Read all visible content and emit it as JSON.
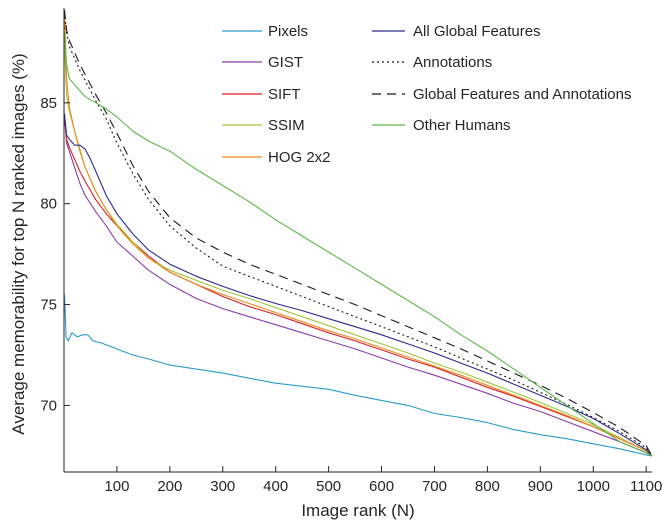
{
  "chart_data": {
    "type": "line",
    "title": "",
    "xlabel": "Image rank (N)",
    "ylabel": "Average memorability for top N ranked images (%)",
    "xlim": [
      0,
      1111
    ],
    "ylim": [
      66.7,
      89.7
    ],
    "xticks": [
      100,
      200,
      300,
      400,
      500,
      600,
      700,
      800,
      900,
      1000,
      1100
    ],
    "yticks": [
      70,
      75,
      80,
      85
    ],
    "grid": false,
    "legend_position": "top-right",
    "series": [
      {
        "name": "Pixels",
        "color": "#2A9BC9",
        "dash": "solid",
        "points": [
          [
            1,
            75.5
          ],
          [
            4,
            73.4
          ],
          [
            8,
            73.2
          ],
          [
            15,
            73.6
          ],
          [
            25,
            73.4
          ],
          [
            35,
            73.5
          ],
          [
            45,
            73.5
          ],
          [
            55,
            73.2
          ],
          [
            70,
            73.1
          ],
          [
            90,
            72.9
          ],
          [
            110,
            72.7
          ],
          [
            130,
            72.5
          ],
          [
            160,
            72.3
          ],
          [
            200,
            72.0
          ],
          [
            250,
            71.8
          ],
          [
            300,
            71.6
          ],
          [
            350,
            71.35
          ],
          [
            400,
            71.1
          ],
          [
            450,
            70.95
          ],
          [
            500,
            70.8
          ],
          [
            550,
            70.5
          ],
          [
            600,
            70.25
          ],
          [
            650,
            70.0
          ],
          [
            700,
            69.6
          ],
          [
            750,
            69.4
          ],
          [
            800,
            69.15
          ],
          [
            850,
            68.8
          ],
          [
            900,
            68.55
          ],
          [
            950,
            68.35
          ],
          [
            1000,
            68.1
          ],
          [
            1050,
            67.85
          ],
          [
            1100,
            67.55
          ],
          [
            1111,
            67.5
          ]
        ]
      },
      {
        "name": "GIST",
        "color": "#8A3FA5",
        "dash": "solid",
        "points": [
          [
            1,
            84.5
          ],
          [
            5,
            83.0
          ],
          [
            10,
            82.6
          ],
          [
            20,
            81.8
          ],
          [
            30,
            81.0
          ],
          [
            40,
            80.4
          ],
          [
            60,
            79.6
          ],
          [
            80,
            78.9
          ],
          [
            100,
            78.1
          ],
          [
            130,
            77.4
          ],
          [
            160,
            76.7
          ],
          [
            200,
            76.0
          ],
          [
            250,
            75.3
          ],
          [
            300,
            74.8
          ],
          [
            350,
            74.4
          ],
          [
            400,
            74.0
          ],
          [
            450,
            73.6
          ],
          [
            500,
            73.2
          ],
          [
            550,
            72.8
          ],
          [
            600,
            72.35
          ],
          [
            650,
            71.9
          ],
          [
            700,
            71.5
          ],
          [
            750,
            71.05
          ],
          [
            800,
            70.6
          ],
          [
            850,
            70.1
          ],
          [
            900,
            69.7
          ],
          [
            950,
            69.2
          ],
          [
            1000,
            68.7
          ],
          [
            1050,
            68.2
          ],
          [
            1100,
            67.65
          ],
          [
            1111,
            67.5
          ]
        ]
      },
      {
        "name": "SIFT",
        "color": "#D82027",
        "dash": "solid",
        "points": [
          [
            1,
            84.2
          ],
          [
            5,
            83.2
          ],
          [
            10,
            82.8
          ],
          [
            20,
            82.2
          ],
          [
            30,
            81.6
          ],
          [
            40,
            81.1
          ],
          [
            60,
            80.2
          ],
          [
            80,
            79.5
          ],
          [
            100,
            78.9
          ],
          [
            130,
            78.1
          ],
          [
            160,
            77.4
          ],
          [
            200,
            76.6
          ],
          [
            250,
            76.0
          ],
          [
            300,
            75.4
          ],
          [
            350,
            74.9
          ],
          [
            400,
            74.5
          ],
          [
            450,
            74.05
          ],
          [
            500,
            73.6
          ],
          [
            550,
            73.2
          ],
          [
            600,
            72.75
          ],
          [
            650,
            72.3
          ],
          [
            700,
            71.9
          ],
          [
            750,
            71.4
          ],
          [
            800,
            70.9
          ],
          [
            850,
            70.45
          ],
          [
            900,
            69.95
          ],
          [
            950,
            69.45
          ],
          [
            1000,
            68.95
          ],
          [
            1050,
            68.35
          ],
          [
            1100,
            67.75
          ],
          [
            1111,
            67.5
          ]
        ]
      },
      {
        "name": "SSIM",
        "color": "#A4C639",
        "dash": "solid",
        "points": [
          [
            1,
            87.9
          ],
          [
            5,
            85.4
          ],
          [
            10,
            84.6
          ],
          [
            20,
            83.6
          ],
          [
            30,
            82.7
          ],
          [
            40,
            81.8
          ],
          [
            60,
            80.6
          ],
          [
            80,
            79.7
          ],
          [
            100,
            79.0
          ],
          [
            130,
            78.1
          ],
          [
            160,
            77.3
          ],
          [
            200,
            76.7
          ],
          [
            250,
            76.2
          ],
          [
            300,
            75.7
          ],
          [
            350,
            75.3
          ],
          [
            400,
            74.85
          ],
          [
            450,
            74.4
          ],
          [
            500,
            73.95
          ],
          [
            550,
            73.5
          ],
          [
            600,
            73.05
          ],
          [
            650,
            72.6
          ],
          [
            700,
            72.1
          ],
          [
            750,
            71.65
          ],
          [
            800,
            71.15
          ],
          [
            850,
            70.65
          ],
          [
            900,
            70.15
          ],
          [
            950,
            69.6
          ],
          [
            1000,
            69.05
          ],
          [
            1050,
            68.4
          ],
          [
            1100,
            67.75
          ],
          [
            1111,
            67.5
          ]
        ]
      },
      {
        "name": "HOG 2x2",
        "color": "#F08A1C",
        "dash": "solid",
        "points": [
          [
            1,
            89.6
          ],
          [
            5,
            86.2
          ],
          [
            10,
            84.8
          ],
          [
            20,
            83.6
          ],
          [
            30,
            82.6
          ],
          [
            40,
            81.8
          ],
          [
            60,
            80.6
          ],
          [
            80,
            79.7
          ],
          [
            100,
            78.9
          ],
          [
            130,
            78.0
          ],
          [
            160,
            77.3
          ],
          [
            200,
            76.6
          ],
          [
            250,
            76.0
          ],
          [
            300,
            75.5
          ],
          [
            350,
            75.05
          ],
          [
            400,
            74.6
          ],
          [
            450,
            74.15
          ],
          [
            500,
            73.7
          ],
          [
            550,
            73.3
          ],
          [
            600,
            72.85
          ],
          [
            650,
            72.4
          ],
          [
            700,
            71.95
          ],
          [
            750,
            71.5
          ],
          [
            800,
            71.0
          ],
          [
            850,
            70.5
          ],
          [
            900,
            70.0
          ],
          [
            950,
            69.5
          ],
          [
            1000,
            68.95
          ],
          [
            1050,
            68.35
          ],
          [
            1100,
            67.75
          ],
          [
            1111,
            67.5
          ]
        ]
      },
      {
        "name": "All Global Features",
        "color": "#2B2C8F",
        "dash": "solid",
        "points": [
          [
            1,
            84.4
          ],
          [
            5,
            83.4
          ],
          [
            10,
            83.2
          ],
          [
            20,
            82.9
          ],
          [
            30,
            82.9
          ],
          [
            40,
            82.7
          ],
          [
            50,
            82.2
          ],
          [
            60,
            81.6
          ],
          [
            80,
            80.4
          ],
          [
            100,
            79.5
          ],
          [
            130,
            78.5
          ],
          [
            160,
            77.7
          ],
          [
            200,
            77.0
          ],
          [
            250,
            76.4
          ],
          [
            300,
            75.9
          ],
          [
            350,
            75.45
          ],
          [
            400,
            75.05
          ],
          [
            450,
            74.7
          ],
          [
            500,
            74.3
          ],
          [
            550,
            73.9
          ],
          [
            600,
            73.5
          ],
          [
            650,
            73.05
          ],
          [
            700,
            72.6
          ],
          [
            750,
            72.1
          ],
          [
            800,
            71.6
          ],
          [
            850,
            71.05
          ],
          [
            900,
            70.5
          ],
          [
            950,
            69.95
          ],
          [
            1000,
            69.35
          ],
          [
            1050,
            68.6
          ],
          [
            1100,
            67.8
          ],
          [
            1111,
            67.5
          ]
        ]
      },
      {
        "name": "Annotations",
        "color": "#1a1a1a",
        "dash": "dotted",
        "points": [
          [
            1,
            89.5
          ],
          [
            5,
            88.5
          ],
          [
            10,
            87.8
          ],
          [
            20,
            87.2
          ],
          [
            30,
            86.6
          ],
          [
            40,
            86.1
          ],
          [
            60,
            85.1
          ],
          [
            80,
            84.2
          ],
          [
            100,
            83.0
          ],
          [
            130,
            81.5
          ],
          [
            160,
            80.2
          ],
          [
            200,
            78.9
          ],
          [
            250,
            77.8
          ],
          [
            300,
            76.9
          ],
          [
            350,
            76.4
          ],
          [
            400,
            75.9
          ],
          [
            450,
            75.4
          ],
          [
            500,
            74.9
          ],
          [
            550,
            74.4
          ],
          [
            600,
            73.9
          ],
          [
            650,
            73.4
          ],
          [
            700,
            72.9
          ],
          [
            750,
            72.35
          ],
          [
            800,
            71.8
          ],
          [
            850,
            71.25
          ],
          [
            900,
            70.65
          ],
          [
            950,
            70.05
          ],
          [
            1000,
            69.4
          ],
          [
            1050,
            68.7
          ],
          [
            1100,
            67.9
          ],
          [
            1111,
            67.5
          ]
        ]
      },
      {
        "name": "Global Features and Annotations",
        "color": "#1a1a1a",
        "dash": "dashed",
        "points": [
          [
            1,
            89.6
          ],
          [
            5,
            88.6
          ],
          [
            10,
            88.1
          ],
          [
            20,
            87.5
          ],
          [
            30,
            86.9
          ],
          [
            40,
            86.4
          ],
          [
            60,
            85.4
          ],
          [
            80,
            84.5
          ],
          [
            100,
            83.5
          ],
          [
            130,
            81.9
          ],
          [
            160,
            80.6
          ],
          [
            200,
            79.3
          ],
          [
            250,
            78.3
          ],
          [
            300,
            77.6
          ],
          [
            350,
            77.0
          ],
          [
            400,
            76.5
          ],
          [
            450,
            76.0
          ],
          [
            500,
            75.5
          ],
          [
            550,
            75.0
          ],
          [
            600,
            74.45
          ],
          [
            650,
            73.9
          ],
          [
            700,
            73.35
          ],
          [
            750,
            72.8
          ],
          [
            800,
            72.2
          ],
          [
            850,
            71.6
          ],
          [
            900,
            71.0
          ],
          [
            950,
            70.35
          ],
          [
            1000,
            69.65
          ],
          [
            1050,
            68.9
          ],
          [
            1100,
            68.0
          ],
          [
            1111,
            67.5
          ]
        ]
      },
      {
        "name": "Other Humans",
        "color": "#5DB848",
        "dash": "solid",
        "points": [
          [
            1,
            88.5
          ],
          [
            5,
            86.9
          ],
          [
            10,
            86.2
          ],
          [
            20,
            85.9
          ],
          [
            30,
            85.6
          ],
          [
            40,
            85.3
          ],
          [
            60,
            85.0
          ],
          [
            80,
            84.7
          ],
          [
            100,
            84.3
          ],
          [
            130,
            83.6
          ],
          [
            160,
            83.1
          ],
          [
            200,
            82.6
          ],
          [
            250,
            81.7
          ],
          [
            300,
            80.9
          ],
          [
            350,
            80.1
          ],
          [
            400,
            79.2
          ],
          [
            450,
            78.4
          ],
          [
            500,
            77.6
          ],
          [
            550,
            76.8
          ],
          [
            600,
            76.0
          ],
          [
            650,
            75.2
          ],
          [
            700,
            74.4
          ],
          [
            750,
            73.5
          ],
          [
            800,
            72.7
          ],
          [
            850,
            71.8
          ],
          [
            900,
            70.9
          ],
          [
            950,
            70.0
          ],
          [
            1000,
            69.1
          ],
          [
            1050,
            68.2
          ],
          [
            1100,
            67.65
          ],
          [
            1111,
            67.5
          ]
        ]
      }
    ]
  }
}
